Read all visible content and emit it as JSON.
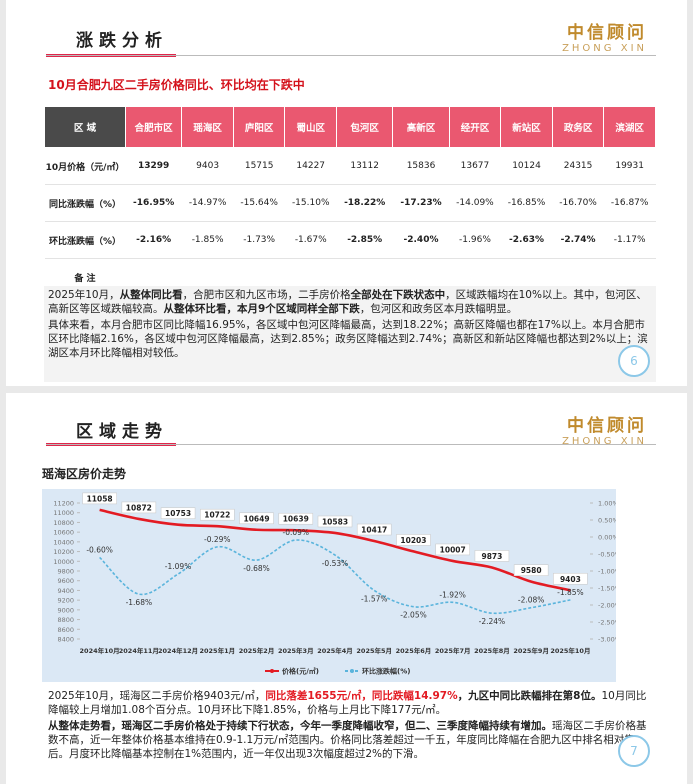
{
  "slides": [
    {
      "header": "涨跌分析",
      "logo": {
        "name": "中信顾问",
        "en": "ZHONG XIN"
      },
      "subtitle": "10月合肥九区二手房价格同比、环比均在下跌中",
      "table": {
        "header": [
          "区 域",
          "合肥市区",
          "瑶海区",
          "庐阳区",
          "蜀山区",
          "包河区",
          "高新区",
          "经开区",
          "新站区",
          "政务区",
          "滨湖区"
        ],
        "rows": [
          {
            "label": "10月价格（元/㎡）",
            "cells": [
              {
                "text": "13299",
                "bold": true
              },
              {
                "text": "9403"
              },
              {
                "text": "15715"
              },
              {
                "text": "14227"
              },
              {
                "text": "13112"
              },
              {
                "text": "15836"
              },
              {
                "text": "13677"
              },
              {
                "text": "10124"
              },
              {
                "text": "24315"
              },
              {
                "text": "19931"
              }
            ]
          },
          {
            "label": "同比涨跌幅（%）",
            "cells": [
              {
                "text": "-16.95%",
                "bold": true
              },
              {
                "text": "-14.97%"
              },
              {
                "text": "-15.64%"
              },
              {
                "text": "-15.10%"
              },
              {
                "text": "-18.22%",
                "bold": true
              },
              {
                "text": "-17.23%",
                "bold": true
              },
              {
                "text": "-14.09%"
              },
              {
                "text": "-16.85%"
              },
              {
                "text": "-16.70%"
              },
              {
                "text": "-16.87%"
              }
            ]
          },
          {
            "label": "环比涨跌幅（%）",
            "cells": [
              {
                "text": "-2.16%",
                "bold": true
              },
              {
                "text": "-1.85%"
              },
              {
                "text": "-1.73%"
              },
              {
                "text": "-1.67%"
              },
              {
                "text": "-2.85%",
                "bold": true
              },
              {
                "text": "-2.40%",
                "bold": true
              },
              {
                "text": "-1.96%"
              },
              {
                "text": "-2.63%",
                "bold": true
              },
              {
                "text": "-2.74%",
                "bold": true
              },
              {
                "text": "-1.17%"
              }
            ]
          },
          {
            "label": "备 注",
            "cells": []
          }
        ]
      },
      "paragraphs": [
        [
          {
            "text": "2025年10月，"
          },
          {
            "text": "从整体同比看",
            "style": "bold"
          },
          {
            "text": "，合肥市区和九区市场，二手房价格"
          },
          {
            "text": "全部处在下跌状态中",
            "style": "bold"
          },
          {
            "text": "，区域跌幅均在10%以上。其中，包河区、高新区等区域跌幅较高。"
          },
          {
            "text": "从整体环比看，本月9个区域同样全部下跌",
            "style": "bold"
          },
          {
            "text": "，包河区和政务区本月跌幅明显。"
          }
        ],
        [
          {
            "text": "具体来看，本月合肥市区同比降幅16.95%，各区域中包河区降幅最高，达到18.22%；高新区降幅也都在17%以上。本月合肥市区环比降幅2.16%，各区域中包河区降幅最高，达到2.85%；政务区降幅达到2.74%；高新区和新站区降幅也都达到2%以上；滨湖区本月环比降幅相对较低。"
          }
        ]
      ],
      "page": "6"
    },
    {
      "header": "区域走势",
      "logo": {
        "name": "中信顾问",
        "en": "ZHONG XIN"
      },
      "paragraphs": [
        [
          {
            "text": "2025年10月，瑶海区二手房价格9403元/㎡，"
          },
          {
            "text": "同比落差1655元/㎡，同比跌幅14.97%",
            "style": "red"
          },
          {
            "text": "，九区中同比跌幅排在第8位。",
            "style": "bold"
          },
          {
            "text": "10月同比降幅较上月增加1.08个百分点。10月环比下降1.85%，价格与上月比下降177元/㎡。"
          }
        ],
        [
          {
            "text": "从整体走势看，瑶海区二手房价格处于持续下行状态，今年一季度降幅收窄，但二、三季度降幅持续有增加。",
            "style": "bold"
          },
          {
            "text": "瑶海区二手房价格基数不高，近一年整体价格基本维持在0.9-1.1万元/㎡范围内。价格同比落差超过一千五，年度同比降幅在合肥九区中排名相对靠后。月度环比降幅基本控制在1%范围内，近一年仅出现3次幅度超过2%的下滑。"
          }
        ]
      ],
      "page": "7"
    }
  ],
  "chart_data": {
    "type": "line",
    "title": "瑶海区房价走势",
    "categories": [
      "2024年10月",
      "2024年11月",
      "2024年12月",
      "2025年1月",
      "2025年2月",
      "2025年3月",
      "2025年4月",
      "2025年5月",
      "2025年6月",
      "2025年7月",
      "2025年8月",
      "2025年9月",
      "2025年10月"
    ],
    "series": [
      {
        "name": "价格(元/㎡)",
        "color": "#e31b23",
        "values": [
          11058,
          10872,
          10753,
          10722,
          10649,
          10639,
          10583,
          10417,
          10203,
          10007,
          9873,
          9580,
          9403
        ]
      },
      {
        "name": "环比涨跌幅(%)",
        "color": "#5ab4dc",
        "axis": "y2",
        "values": [
          -0.6,
          -1.68,
          -1.09,
          -0.29,
          -0.68,
          -0.09,
          -0.53,
          -1.57,
          -2.05,
          -1.92,
          -2.24,
          -2.08,
          -1.85
        ],
        "value_labels": [
          "-0.60%",
          "-1.68%",
          "-1.09%",
          "-0.29%",
          "-0.68%",
          "-0.09%",
          "-0.53%",
          "-1.57%",
          "-2.05%",
          "-1.92%",
          "-2.24%",
          "-2.08%",
          "-1.85%"
        ]
      }
    ],
    "ylim": [
      8400,
      11200
    ],
    "yticks": [
      8400,
      8600,
      8800,
      9000,
      9200,
      9400,
      9600,
      9800,
      10000,
      10200,
      10400,
      10600,
      10800,
      11000,
      11200
    ],
    "y2lim": [
      -3,
      1
    ],
    "y2ticks": [
      {
        "value": -3,
        "label": "-3.00%"
      },
      {
        "value": -2.5,
        "label": "-2.50%"
      },
      {
        "value": -2,
        "label": "-2.00%"
      },
      {
        "value": -1.5,
        "label": "-1.50%"
      },
      {
        "value": -1,
        "label": "-1.00%"
      },
      {
        "value": -0.5,
        "label": "-0.50%"
      },
      {
        "value": 0,
        "label": "0.00%"
      },
      {
        "value": 0.5,
        "label": "0.50%"
      },
      {
        "value": 1,
        "label": "1.00%"
      }
    ],
    "legend": "bottom"
  }
}
